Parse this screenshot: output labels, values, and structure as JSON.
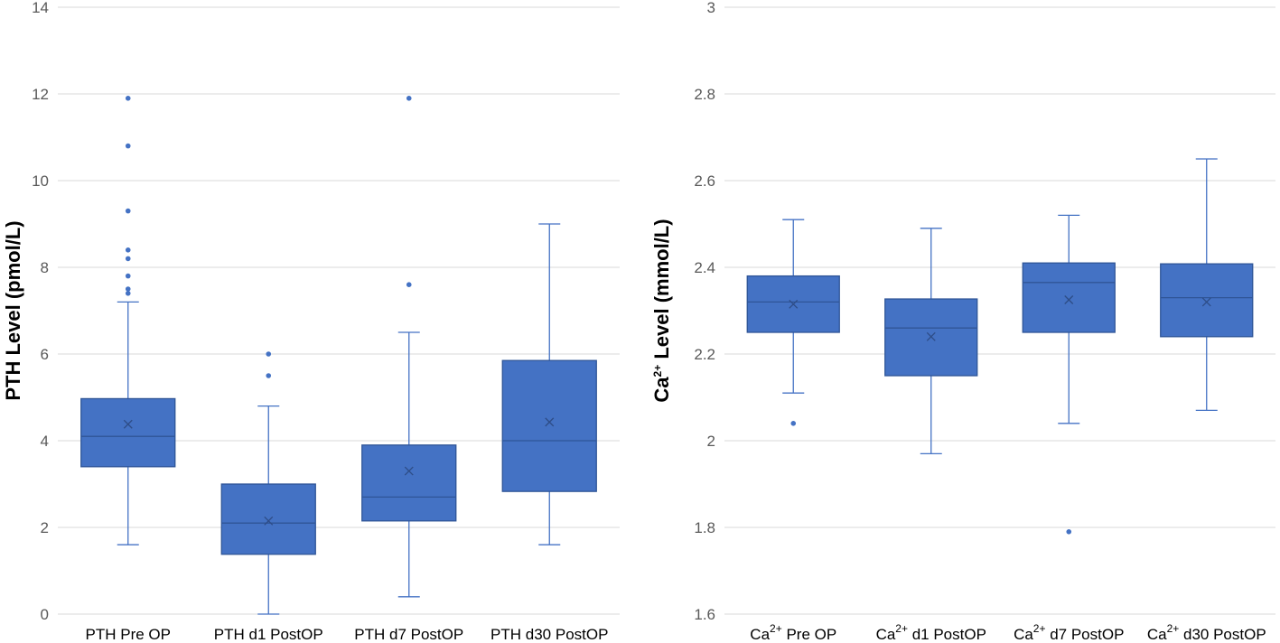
{
  "colors": {
    "box_fill": "#4472c4",
    "box_edge": "#2f5597",
    "grid": "#d9d9d9",
    "mean_marker": "#2e4d87"
  },
  "chart_data": [
    {
      "type": "box",
      "title": "",
      "ylabel": "PTH Level (pmol/L)",
      "ylim": [
        0,
        14
      ],
      "yticks": [
        "0",
        "2",
        "4",
        "6",
        "8",
        "10",
        "12",
        "14"
      ],
      "ytick_values": [
        0,
        2,
        4,
        6,
        8,
        10,
        12,
        14
      ],
      "grid": true,
      "categories": [
        {
          "label": "PTH Pre OP",
          "whisker_low": 1.6,
          "q1": 3.4,
          "median": 4.1,
          "q3": 4.97,
          "whisker_high": 7.2,
          "mean": 4.38,
          "outliers": [
            7.4,
            7.5,
            7.8,
            8.2,
            8.4,
            9.3,
            10.8,
            11.9
          ]
        },
        {
          "label": "PTH d1 PostOP",
          "whisker_low": 0.0,
          "q1": 1.38,
          "median": 2.1,
          "q3": 3.0,
          "whisker_high": 4.8,
          "mean": 2.15,
          "outliers": [
            5.5,
            6.0
          ]
        },
        {
          "label": "PTH d7 PostOP",
          "whisker_low": 0.4,
          "q1": 2.15,
          "median": 2.7,
          "q3": 3.9,
          "whisker_high": 6.5,
          "mean": 3.3,
          "outliers": [
            7.6,
            11.9
          ]
        },
        {
          "label": "PTH d30 PostOP",
          "whisker_low": 1.6,
          "q1": 2.83,
          "median": 4.0,
          "q3": 5.85,
          "whisker_high": 9.0,
          "mean": 4.43,
          "outliers": []
        }
      ]
    },
    {
      "type": "box",
      "title": "",
      "ylabel": {
        "main": "Ca",
        "sup": "2+",
        "rest": " Level (mmol/L)"
      },
      "ylim": [
        1.6,
        3.0
      ],
      "yticks": [
        "1.6",
        "1.8",
        "2",
        "2.2",
        "2.4",
        "2.6",
        "2.8",
        "3"
      ],
      "ytick_values": [
        1.6,
        1.8,
        2.0,
        2.2,
        2.4,
        2.6,
        2.8,
        3.0
      ],
      "grid": true,
      "categories": [
        {
          "label": {
            "main": "Ca",
            "sup": "2+",
            "rest": " Pre OP"
          },
          "whisker_low": 2.11,
          "q1": 2.25,
          "median": 2.32,
          "q3": 2.38,
          "whisker_high": 2.51,
          "mean": 2.315,
          "outliers": [
            2.04
          ]
        },
        {
          "label": {
            "main": "Ca",
            "sup": "2+",
            "rest": " d1 PostOP"
          },
          "whisker_low": 1.97,
          "q1": 2.15,
          "median": 2.26,
          "q3": 2.327,
          "whisker_high": 2.49,
          "mean": 2.24,
          "outliers": []
        },
        {
          "label": {
            "main": "Ca",
            "sup": "2+",
            "rest": " d7 PostOP"
          },
          "whisker_low": 2.04,
          "q1": 2.25,
          "median": 2.365,
          "q3": 2.41,
          "whisker_high": 2.52,
          "mean": 2.325,
          "outliers": [
            1.79
          ]
        },
        {
          "label": {
            "main": "Ca",
            "sup": "2+",
            "rest": " d30 PostOP"
          },
          "whisker_low": 2.07,
          "q1": 2.24,
          "median": 2.33,
          "q3": 2.408,
          "whisker_high": 2.65,
          "mean": 2.32,
          "outliers": []
        }
      ]
    }
  ]
}
